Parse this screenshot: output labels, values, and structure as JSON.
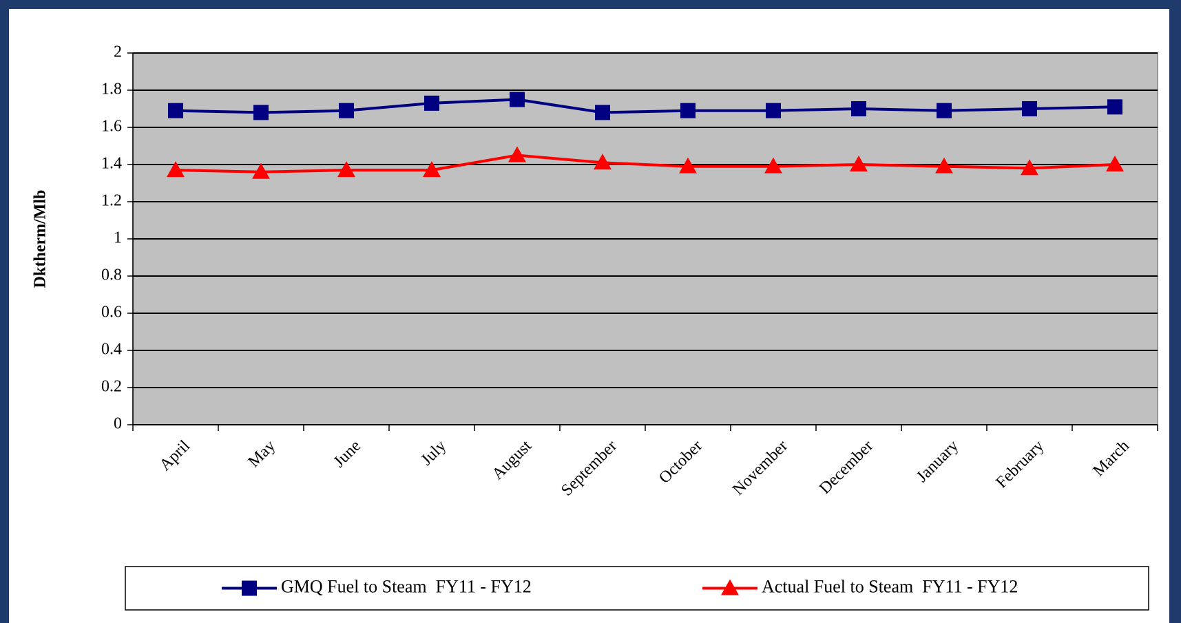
{
  "chart_data": {
    "type": "line",
    "y_label": "Dktherm/Mlb",
    "categories": [
      "April",
      "May",
      "June",
      "July",
      "August",
      "September",
      "October",
      "November",
      "December",
      "January",
      "February",
      "March"
    ],
    "series": [
      {
        "name": "GMQ Fuel to Steam  FY11 - FY12",
        "color": "#000080",
        "marker": "square",
        "values": [
          1.69,
          1.68,
          1.69,
          1.73,
          1.75,
          1.68,
          1.69,
          1.69,
          1.7,
          1.69,
          1.7,
          1.71
        ]
      },
      {
        "name": "Actual Fuel to Steam  FY11 - FY12",
        "color": "#ff0000",
        "marker": "triangle",
        "values": [
          1.37,
          1.36,
          1.37,
          1.37,
          1.45,
          1.41,
          1.39,
          1.39,
          1.4,
          1.39,
          1.38,
          1.4
        ]
      }
    ],
    "ylim": [
      0,
      2
    ],
    "yticks": [
      0,
      0.2,
      0.4,
      0.6,
      0.8,
      1,
      1.2,
      1.4,
      1.6,
      1.8,
      2
    ],
    "grid": true,
    "legend": "bottom"
  }
}
